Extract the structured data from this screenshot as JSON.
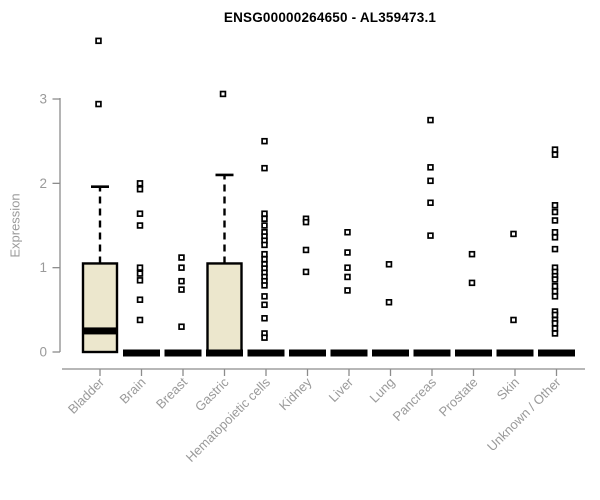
{
  "title": "ENSG00000264650 - AL359473.1",
  "colors": {
    "box_fill": "#ece7cd",
    "box_stroke": "#000000",
    "median": "#000000",
    "point_stroke": "#000000",
    "point_fill": "#ffffff",
    "axis_line": "#8c8c8c",
    "tick_label": "#9a9a9a",
    "title_text": "#000000"
  },
  "chart_data": {
    "type": "boxplot",
    "title": "ENSG00000264650 - AL359473.1",
    "xlabel": "",
    "ylabel": "Expression",
    "ylim": [
      0,
      3.8
    ],
    "yticks": [
      0,
      1,
      2,
      3
    ],
    "grid": false,
    "legend": false,
    "categories": [
      "Bladder",
      "Brain",
      "Breast",
      "Gastric",
      "Hematopoietic cells",
      "Kidney",
      "Liver",
      "Lung",
      "Pancreas",
      "Prostate",
      "Skin",
      "Unknown / Other"
    ],
    "series": [
      {
        "name": "Bladder",
        "box": {
          "q1": 0,
          "median": 0.25,
          "q3": 1.05,
          "whisker_low": 0,
          "whisker_high": 1.96
        },
        "points": [
          3.69,
          2.94
        ]
      },
      {
        "name": "Brain",
        "box": {
          "q1": 0,
          "median": 0,
          "q3": 0,
          "whisker_low": 0,
          "whisker_high": 0
        },
        "points": [
          2.0,
          1.93,
          1.64,
          1.5,
          1.0,
          0.93,
          0.85,
          0.62,
          0.38
        ]
      },
      {
        "name": "Breast",
        "box": {
          "q1": 0,
          "median": 0,
          "q3": 0,
          "whisker_low": 0,
          "whisker_high": 0
        },
        "points": [
          1.12,
          1.0,
          0.84,
          0.74,
          0.3
        ]
      },
      {
        "name": "Gastric",
        "box": {
          "q1": 0,
          "median": 0,
          "q3": 1.05,
          "whisker_low": 0,
          "whisker_high": 2.1
        },
        "points": [
          3.06
        ]
      },
      {
        "name": "Hematopoietic cells",
        "box": {
          "q1": 0,
          "median": 0,
          "q3": 0,
          "whisker_low": 0,
          "whisker_high": 0
        },
        "points": [
          2.5,
          2.18,
          1.64,
          1.58,
          1.5,
          1.42,
          1.37,
          1.32,
          1.27,
          1.16,
          1.1,
          1.04,
          0.99,
          0.94,
          0.89,
          0.84,
          0.79,
          0.66,
          0.56,
          0.4,
          0.22,
          0.17
        ]
      },
      {
        "name": "Kidney",
        "box": {
          "q1": 0,
          "median": 0,
          "q3": 0,
          "whisker_low": 0,
          "whisker_high": 0
        },
        "points": [
          1.58,
          1.54,
          1.21,
          0.95
        ]
      },
      {
        "name": "Liver",
        "box": {
          "q1": 0,
          "median": 0,
          "q3": 0,
          "whisker_low": 0,
          "whisker_high": 0
        },
        "points": [
          1.42,
          1.18,
          1.0,
          0.89,
          0.73
        ]
      },
      {
        "name": "Lung",
        "box": {
          "q1": 0,
          "median": 0,
          "q3": 0,
          "whisker_low": 0,
          "whisker_high": 0
        },
        "points": [
          1.04,
          0.59
        ]
      },
      {
        "name": "Pancreas",
        "box": {
          "q1": 0,
          "median": 0,
          "q3": 0,
          "whisker_low": 0,
          "whisker_high": 0
        },
        "points": [
          2.75,
          2.19,
          2.03,
          1.77,
          1.38
        ]
      },
      {
        "name": "Prostate",
        "box": {
          "q1": 0,
          "median": 0,
          "q3": 0,
          "whisker_low": 0,
          "whisker_high": 0
        },
        "points": [
          1.16,
          0.82
        ]
      },
      {
        "name": "Skin",
        "box": {
          "q1": 0,
          "median": 0,
          "q3": 0,
          "whisker_low": 0,
          "whisker_high": 0
        },
        "points": [
          1.4,
          0.38
        ]
      },
      {
        "name": "Unknown / Other",
        "box": {
          "q1": 0,
          "median": 0,
          "q3": 0,
          "whisker_low": 0,
          "whisker_high": 0
        },
        "points": [
          2.4,
          2.34,
          1.74,
          1.66,
          1.56,
          1.42,
          1.36,
          1.22,
          1.0,
          0.95,
          0.9,
          0.86,
          0.78,
          0.72,
          0.66,
          0.48,
          0.44,
          0.38,
          0.34,
          0.28,
          0.22
        ]
      }
    ]
  }
}
